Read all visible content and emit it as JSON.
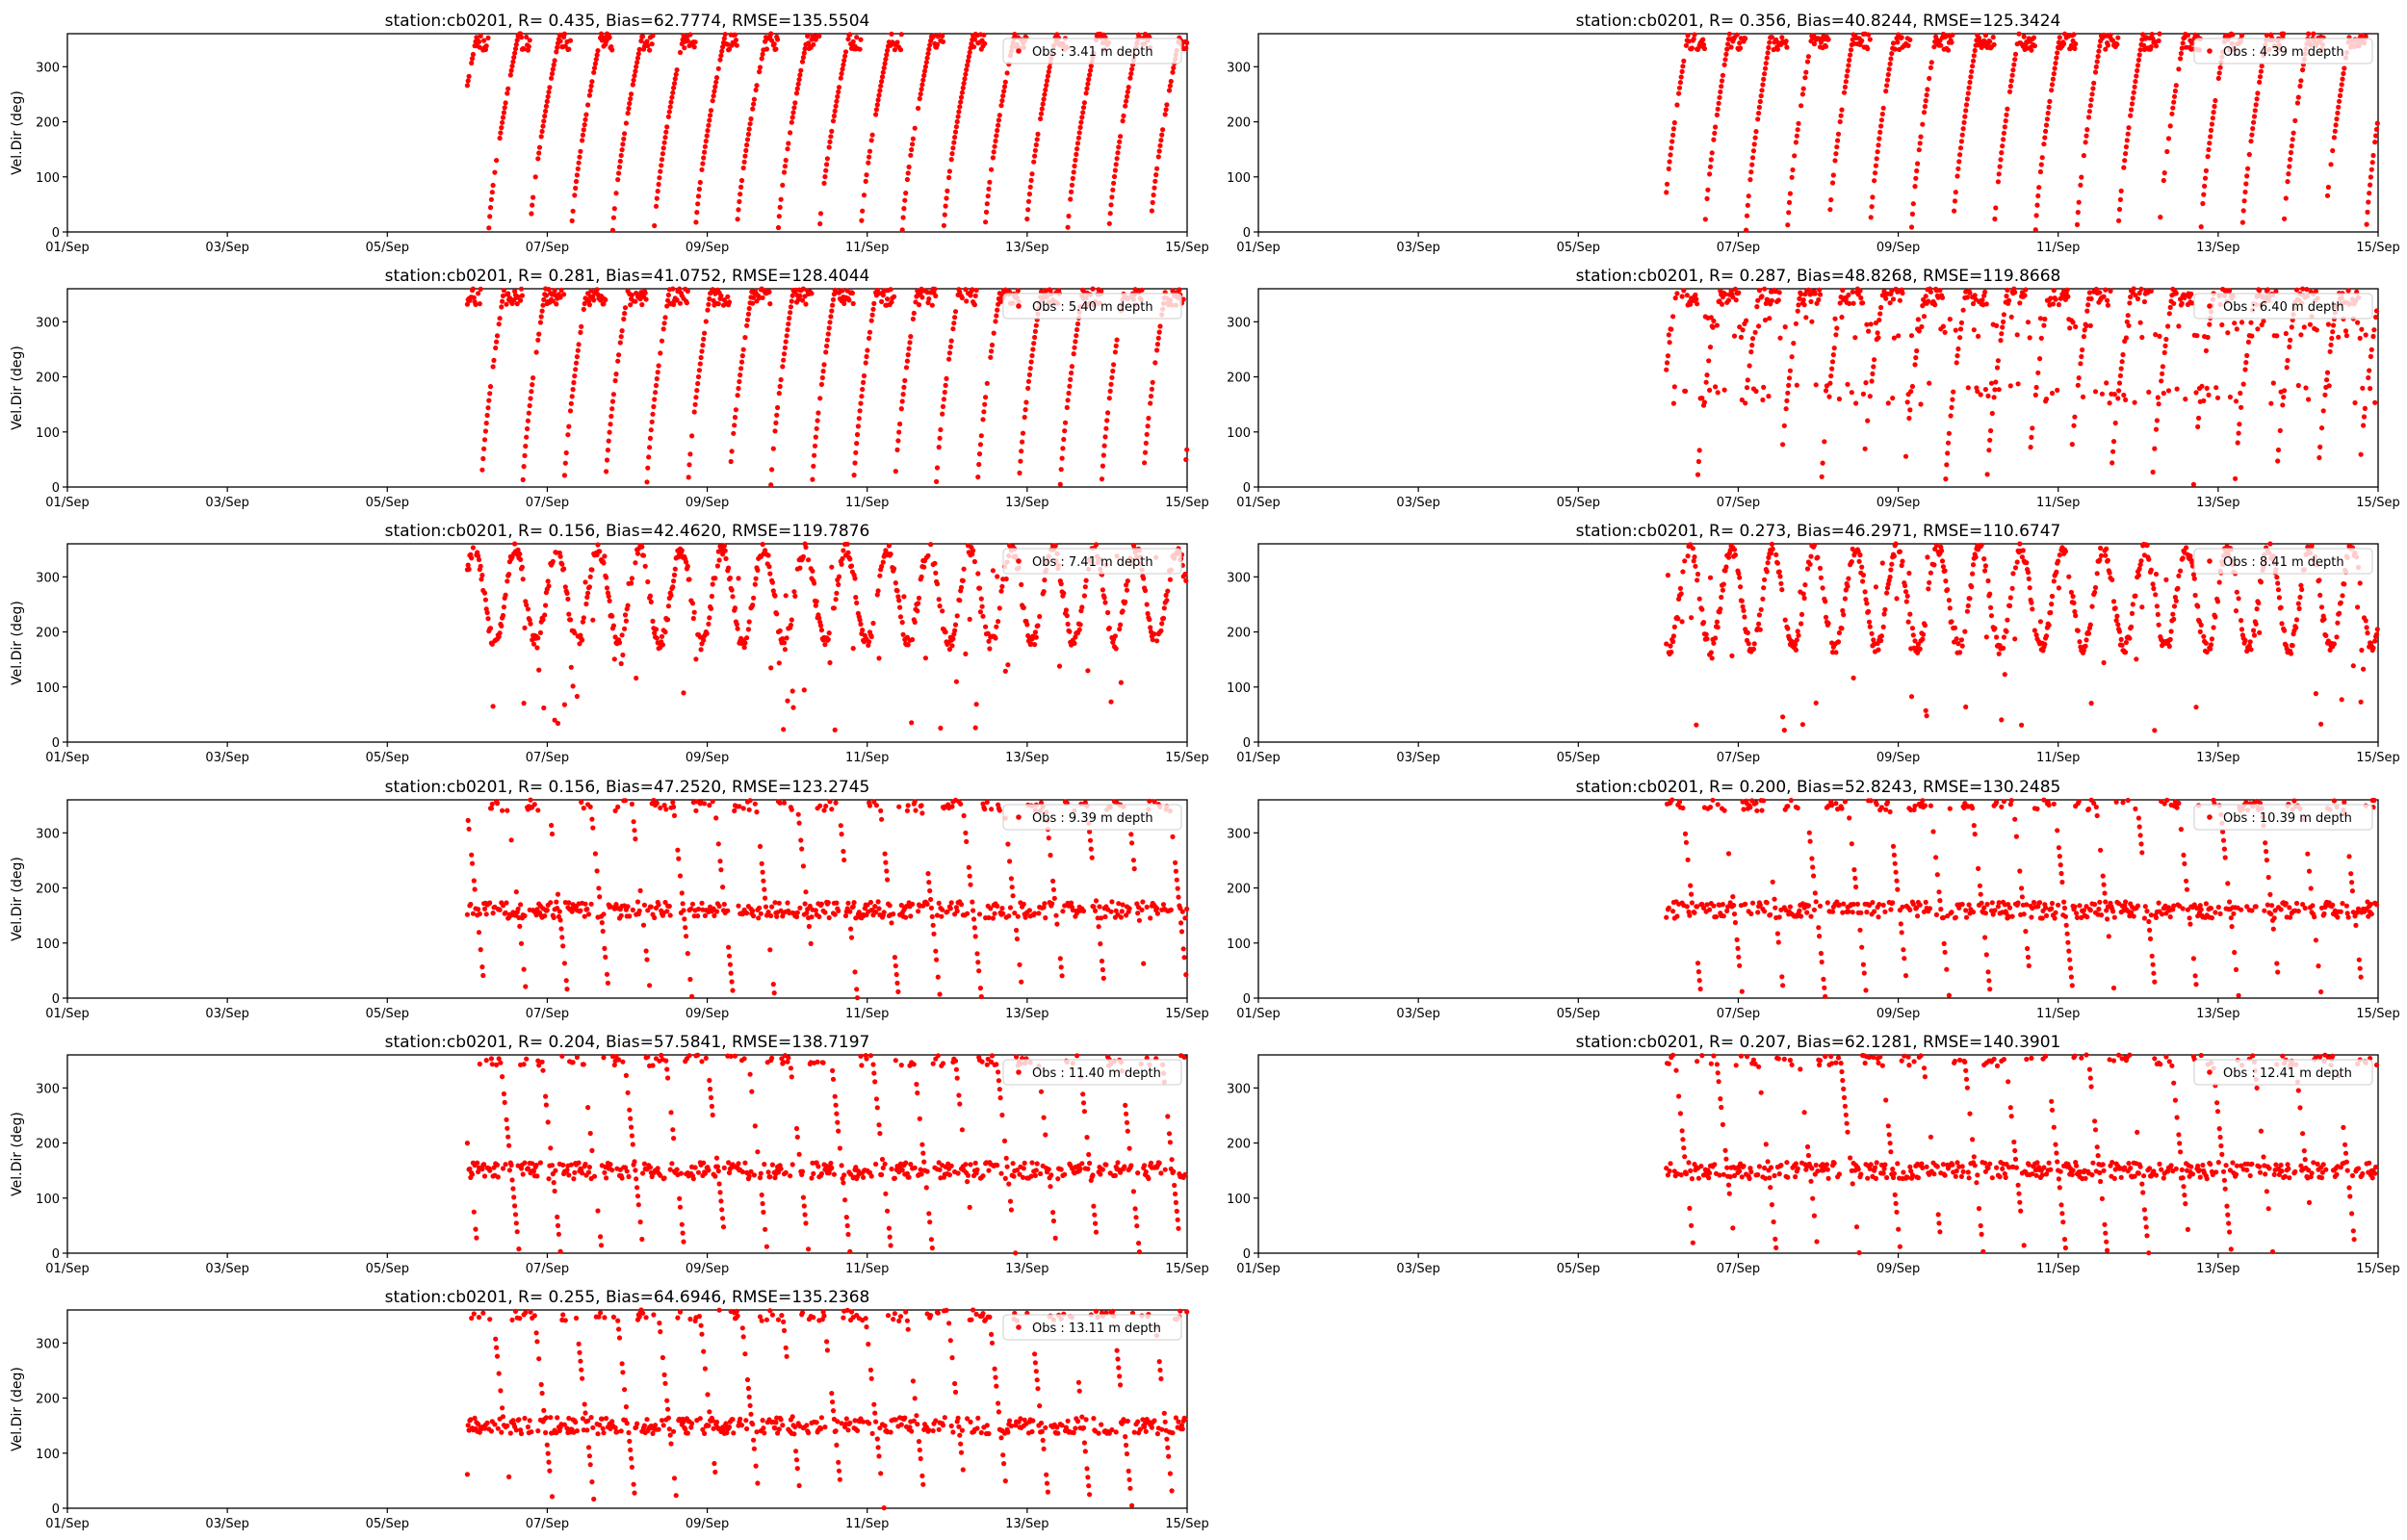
{
  "chart_data": [
    {
      "type": "scatter",
      "title": "station:cb0201, R= 0.435, Bias=62.7774, RMSE=135.5504",
      "ylabel": "Vel.Dir (deg)",
      "legend": "Obs : 3.41 m depth",
      "legend_position": "top-right",
      "color": "#ff0000",
      "xlim": [
        0,
        14
      ],
      "ylim": [
        0,
        360
      ],
      "xticks": [
        0,
        2,
        4,
        6,
        8,
        10,
        12,
        14
      ],
      "xticklabels": [
        "01/Sep",
        "03/Sep",
        "05/Sep",
        "07/Sep",
        "09/Sep",
        "11/Sep",
        "13/Sep",
        "15/Sep"
      ],
      "yticks": [
        0,
        100,
        200,
        300
      ],
      "x_start": 5.0,
      "x_end": 14.0,
      "tidal_period_days": 0.517,
      "pattern": "ramp",
      "ramp_ratio": 0.72,
      "lo": 0,
      "hi": 360,
      "notes": "x values are days since 01/Sep"
    },
    {
      "type": "scatter",
      "title": "station:cb0201, R= 0.356, Bias=40.8244, RMSE=125.3424",
      "ylabel": "",
      "legend": "Obs : 4.39 m depth",
      "legend_position": "top-right",
      "color": "#ff0000",
      "xlim": [
        0,
        14
      ],
      "ylim": [
        0,
        360
      ],
      "xticks": [
        0,
        2,
        4,
        6,
        8,
        10,
        12,
        14
      ],
      "xticklabels": [
        "01/Sep",
        "03/Sep",
        "05/Sep",
        "07/Sep",
        "09/Sep",
        "11/Sep",
        "13/Sep",
        "15/Sep"
      ],
      "yticks": [
        0,
        100,
        200,
        300
      ],
      "x_start": 5.1,
      "x_end": 14.0,
      "tidal_period_days": 0.517,
      "pattern": "ramp",
      "ramp_ratio": 0.6,
      "lo": 0,
      "hi": 360
    },
    {
      "type": "scatter",
      "title": "station:cb0201, R= 0.281, Bias=41.0752, RMSE=128.4044",
      "ylabel": "Vel.Dir (deg)",
      "legend": "Obs : 5.40 m depth",
      "legend_position": "top-right",
      "color": "#ff0000",
      "xlim": [
        0,
        14
      ],
      "ylim": [
        0,
        360
      ],
      "xticks": [
        0,
        2,
        4,
        6,
        8,
        10,
        12,
        14
      ],
      "xticklabels": [
        "01/Sep",
        "03/Sep",
        "05/Sep",
        "07/Sep",
        "09/Sep",
        "11/Sep",
        "13/Sep",
        "15/Sep"
      ],
      "yticks": [
        0,
        100,
        200,
        300
      ],
      "x_start": 5.0,
      "x_end": 14.0,
      "tidal_period_days": 0.517,
      "pattern": "ramp",
      "ramp_ratio": 0.55,
      "lo": 0,
      "hi": 360
    },
    {
      "type": "scatter",
      "title": "station:cb0201, R= 0.287, Bias=48.8268, RMSE=119.8668",
      "ylabel": "",
      "legend": "Obs : 6.40 m depth",
      "legend_position": "top-right",
      "color": "#ff0000",
      "xlim": [
        0,
        14
      ],
      "ylim": [
        0,
        360
      ],
      "xticks": [
        0,
        2,
        4,
        6,
        8,
        10,
        12,
        14
      ],
      "xticklabels": [
        "01/Sep",
        "03/Sep",
        "05/Sep",
        "07/Sep",
        "09/Sep",
        "11/Sep",
        "13/Sep",
        "15/Sep"
      ],
      "yticks": [
        0,
        100,
        200,
        300
      ],
      "x_start": 5.1,
      "x_end": 14.0,
      "tidal_period_days": 0.517,
      "pattern": "mixed",
      "ramp_ratio": 0.5,
      "lo": 0,
      "hi": 360
    },
    {
      "type": "scatter",
      "title": "station:cb0201, R= 0.156, Bias=42.4620, RMSE=119.7876",
      "ylabel": "Vel.Dir (deg)",
      "legend": "Obs : 7.41 m depth",
      "legend_position": "top-right",
      "color": "#ff0000",
      "xlim": [
        0,
        14
      ],
      "ylim": [
        0,
        360
      ],
      "xticks": [
        0,
        2,
        4,
        6,
        8,
        10,
        12,
        14
      ],
      "xticklabels": [
        "01/Sep",
        "03/Sep",
        "05/Sep",
        "07/Sep",
        "09/Sep",
        "11/Sep",
        "13/Sep",
        "15/Sep"
      ],
      "yticks": [
        0,
        100,
        200,
        300
      ],
      "x_start": 5.0,
      "x_end": 14.0,
      "tidal_period_days": 0.517,
      "pattern": "wave",
      "ramp_ratio": 0.5,
      "lo": 180,
      "hi": 350
    },
    {
      "type": "scatter",
      "title": "station:cb0201, R= 0.273, Bias=46.2971, RMSE=110.6747",
      "ylabel": "",
      "legend": "Obs : 8.41 m depth",
      "legend_position": "top-right",
      "color": "#ff0000",
      "xlim": [
        0,
        14
      ],
      "ylim": [
        0,
        360
      ],
      "xticks": [
        0,
        2,
        4,
        6,
        8,
        10,
        12,
        14
      ],
      "xticklabels": [
        "01/Sep",
        "03/Sep",
        "05/Sep",
        "07/Sep",
        "09/Sep",
        "11/Sep",
        "13/Sep",
        "15/Sep"
      ],
      "yticks": [
        0,
        100,
        200,
        300
      ],
      "x_start": 5.1,
      "x_end": 14.0,
      "tidal_period_days": 0.517,
      "pattern": "wave",
      "ramp_ratio": 0.5,
      "lo": 170,
      "hi": 350
    },
    {
      "type": "scatter",
      "title": "station:cb0201, R= 0.156, Bias=47.2520, RMSE=123.2745",
      "ylabel": "Vel.Dir (deg)",
      "legend": "Obs : 9.39 m depth",
      "legend_position": "top-right",
      "color": "#ff0000",
      "xlim": [
        0,
        14
      ],
      "ylim": [
        0,
        360
      ],
      "xticks": [
        0,
        2,
        4,
        6,
        8,
        10,
        12,
        14
      ],
      "xticklabels": [
        "01/Sep",
        "03/Sep",
        "05/Sep",
        "07/Sep",
        "09/Sep",
        "11/Sep",
        "13/Sep",
        "15/Sep"
      ],
      "yticks": [
        0,
        100,
        200,
        300
      ],
      "x_start": 5.0,
      "x_end": 14.0,
      "tidal_period_days": 0.517,
      "pattern": "down",
      "ramp_ratio": 0.45,
      "lo": 160,
      "hi": 350
    },
    {
      "type": "scatter",
      "title": "station:cb0201, R= 0.200, Bias=52.8243, RMSE=130.2485",
      "ylabel": "",
      "legend": "Obs : 10.39 m depth",
      "legend_position": "top-right",
      "color": "#ff0000",
      "xlim": [
        0,
        14
      ],
      "ylim": [
        0,
        360
      ],
      "xticks": [
        0,
        2,
        4,
        6,
        8,
        10,
        12,
        14
      ],
      "xticklabels": [
        "01/Sep",
        "03/Sep",
        "05/Sep",
        "07/Sep",
        "09/Sep",
        "11/Sep",
        "13/Sep",
        "15/Sep"
      ],
      "yticks": [
        0,
        100,
        200,
        300
      ],
      "x_start": 5.1,
      "x_end": 14.0,
      "tidal_period_days": 0.517,
      "pattern": "down",
      "ramp_ratio": 0.45,
      "lo": 160,
      "hi": 350
    },
    {
      "type": "scatter",
      "title": "station:cb0201, R= 0.204, Bias=57.5841, RMSE=138.7197",
      "ylabel": "Vel.Dir (deg)",
      "legend": "Obs : 11.40 m depth",
      "legend_position": "top-right",
      "color": "#ff0000",
      "xlim": [
        0,
        14
      ],
      "ylim": [
        0,
        360
      ],
      "xticks": [
        0,
        2,
        4,
        6,
        8,
        10,
        12,
        14
      ],
      "xticklabels": [
        "01/Sep",
        "03/Sep",
        "05/Sep",
        "07/Sep",
        "09/Sep",
        "11/Sep",
        "13/Sep",
        "15/Sep"
      ],
      "yticks": [
        0,
        100,
        200,
        300
      ],
      "x_start": 5.0,
      "x_end": 14.0,
      "tidal_period_days": 0.517,
      "pattern": "down",
      "ramp_ratio": 0.45,
      "lo": 150,
      "hi": 350
    },
    {
      "type": "scatter",
      "title": "station:cb0201, R= 0.207, Bias=62.1281, RMSE=140.3901",
      "ylabel": "",
      "legend": "Obs : 12.41 m depth",
      "legend_position": "top-right",
      "color": "#ff0000",
      "xlim": [
        0,
        14
      ],
      "ylim": [
        0,
        360
      ],
      "xticks": [
        0,
        2,
        4,
        6,
        8,
        10,
        12,
        14
      ],
      "xticklabels": [
        "01/Sep",
        "03/Sep",
        "05/Sep",
        "07/Sep",
        "09/Sep",
        "11/Sep",
        "13/Sep",
        "15/Sep"
      ],
      "yticks": [
        0,
        100,
        200,
        300
      ],
      "x_start": 5.1,
      "x_end": 14.0,
      "tidal_period_days": 0.517,
      "pattern": "down",
      "ramp_ratio": 0.45,
      "lo": 150,
      "hi": 350
    },
    {
      "type": "scatter",
      "title": "station:cb0201, R= 0.255, Bias=64.6946, RMSE=135.2368",
      "ylabel": "Vel.Dir (deg)",
      "legend": "Obs : 13.11 m depth",
      "legend_position": "top-right",
      "color": "#ff0000",
      "xlim": [
        0,
        14
      ],
      "ylim": [
        0,
        360
      ],
      "xticks": [
        0,
        2,
        4,
        6,
        8,
        10,
        12,
        14
      ],
      "xticklabels": [
        "01/Sep",
        "03/Sep",
        "05/Sep",
        "07/Sep",
        "09/Sep",
        "11/Sep",
        "13/Sep",
        "15/Sep"
      ],
      "yticks": [
        0,
        100,
        200,
        300
      ],
      "x_start": 5.0,
      "x_end": 14.0,
      "tidal_period_days": 0.517,
      "pattern": "down",
      "ramp_ratio": 0.45,
      "lo": 150,
      "hi": 350
    }
  ]
}
